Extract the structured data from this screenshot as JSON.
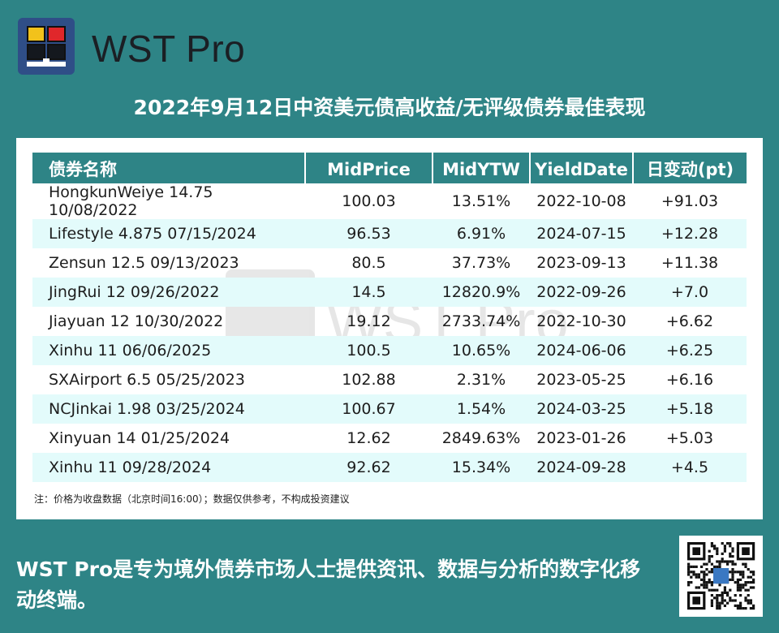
{
  "brand": {
    "name": "WST Pro"
  },
  "title": "2022年9月12日中资美元债高收益/无评级债券最佳表现",
  "table": {
    "headers": [
      "债券名称",
      "MidPrice",
      "MidYTW",
      "YieldDate",
      "日变动(pt)"
    ],
    "rows": [
      [
        "HongkunWeiye 14.75 10/08/2022",
        "100.03",
        "13.51%",
        "2022-10-08",
        "+91.03"
      ],
      [
        "Lifestyle 4.875 07/15/2024",
        "96.53",
        "6.91%",
        "2024-07-15",
        "+12.28"
      ],
      [
        "Zensun 12.5 09/13/2023",
        "80.5",
        "37.73%",
        "2023-09-13",
        "+11.38"
      ],
      [
        "JingRui 12 09/26/2022",
        "14.5",
        "12820.9%",
        "2022-09-26",
        "+7.0"
      ],
      [
        "Jiayuan 12 10/30/2022",
        "19.12",
        "2733.74%",
        "2022-10-30",
        "+6.62"
      ],
      [
        "Xinhu 11 06/06/2025",
        "100.5",
        "10.65%",
        "2024-06-06",
        "+6.25"
      ],
      [
        "SXAirport 6.5 05/25/2023",
        "102.88",
        "2.31%",
        "2023-05-25",
        "+6.16"
      ],
      [
        "NCJinkai 1.98 03/25/2024",
        "100.67",
        "1.54%",
        "2024-03-25",
        "+5.18"
      ],
      [
        "Xinyuan 14 01/25/2024",
        "12.62",
        "2849.63%",
        "2023-01-26",
        "+5.03"
      ],
      [
        "Xinhu 11 09/28/2024",
        "92.62",
        "15.34%",
        "2024-09-28",
        "+4.5"
      ]
    ]
  },
  "note": "注：价格为收盘数据（北京时间16:00）；数据仅供参考，不构成投资建议",
  "watermark": "WST Pro",
  "footer": "WST Pro是专为境外债券市场人士提供资讯、数据与分析的数字化移动终端。",
  "icons": {
    "logo": "wst-pro-logo-icon",
    "qr": "qr-code"
  },
  "colors": {
    "background": "#2e8486",
    "header": "#2e8486",
    "row_alt": "#e3fbfb"
  }
}
